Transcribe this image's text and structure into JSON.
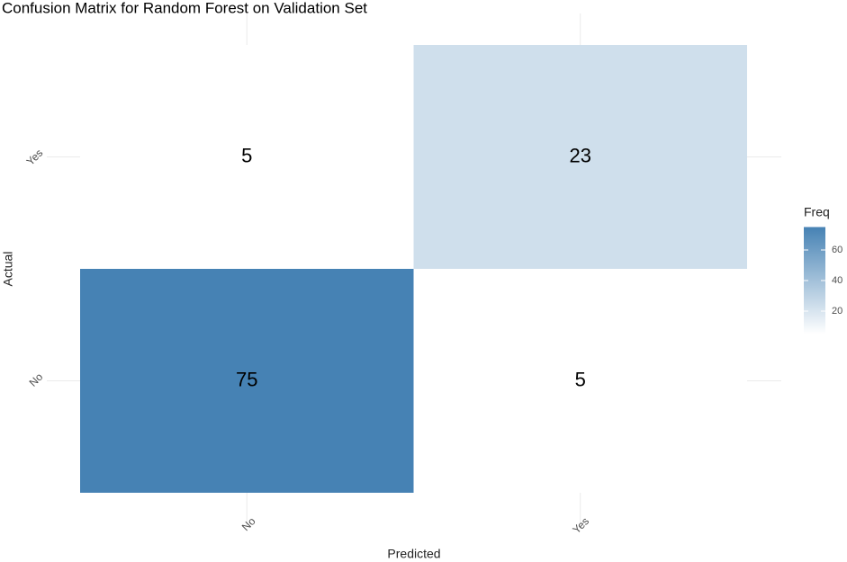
{
  "chart_data": {
    "type": "heatmap",
    "title": "Confusion Matrix for Random Forest on Validation Set",
    "x_label": "Predicted",
    "y_label": "Actual",
    "x_categories": [
      "No",
      "Yes"
    ],
    "y_categories": [
      "No",
      "Yes"
    ],
    "values": [
      [
        75,
        5
      ],
      [
        5,
        23
      ]
    ],
    "low_color": "#ffffff",
    "high_color": "#4682b4",
    "legend_title": "Freq",
    "legend_ticks": [
      20,
      40,
      60
    ],
    "grid": true
  }
}
